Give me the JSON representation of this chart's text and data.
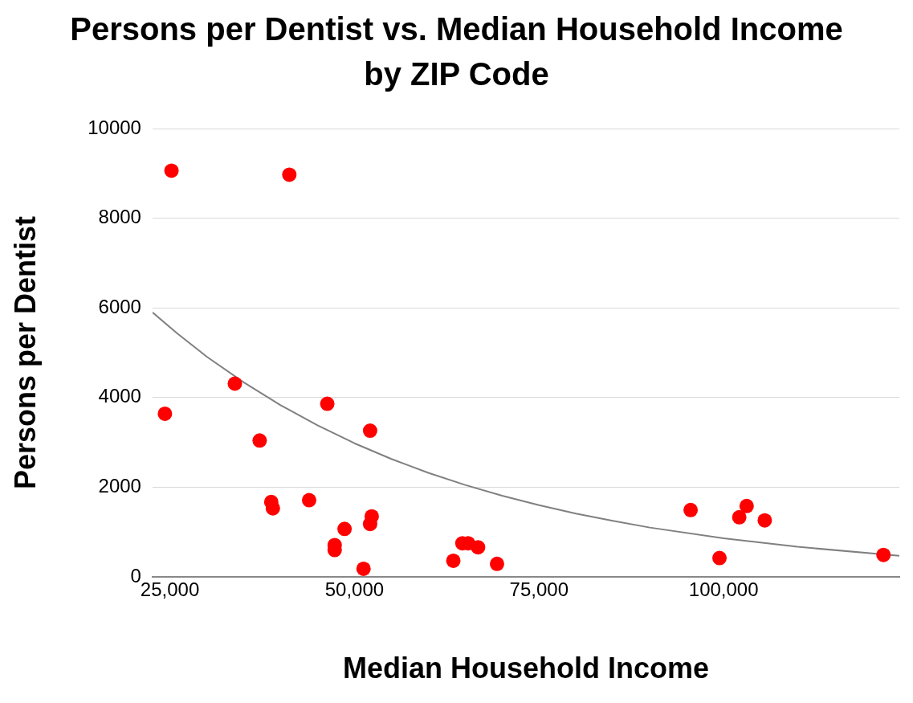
{
  "chart_data": {
    "type": "scatter",
    "title": "Persons per Dentist vs. Median Household Income by ZIP Code",
    "xlabel": "Median Household Income",
    "ylabel": "Persons per Dentist",
    "xlim": [
      22650,
      123800
    ],
    "xticks": [
      {
        "value": 25000,
        "label": "25,000"
      },
      {
        "value": 50000,
        "label": "50,000"
      },
      {
        "value": 75000,
        "label": "75,000"
      },
      {
        "value": 100000,
        "label": "100,000"
      }
    ],
    "ylim": [
      0,
      10000
    ],
    "yticks": [
      0,
      2000,
      4000,
      6000,
      8000,
      10000
    ],
    "grid": "y",
    "legend": false,
    "series": [
      {
        "type": "scatter",
        "color": "#ff0000",
        "marker": "circle",
        "x": [
          25220,
          24330,
          33800,
          37160,
          41180,
          38730,
          38950,
          43860,
          46320,
          47320,
          47320,
          48660,
          51230,
          52120,
          52340,
          52120,
          63390,
          64620,
          65400,
          66740,
          69310,
          95530,
          99440,
          102120,
          103120,
          105570,
          121650
        ],
        "values": [
          9060,
          3640,
          4310,
          3040,
          8970,
          1670,
          1530,
          1710,
          3860,
          710,
          600,
          1070,
          180,
          3260,
          1350,
          1180,
          360,
          750,
          750,
          660,
          290,
          1490,
          420,
          1330,
          1580,
          1260,
          490
        ]
      },
      {
        "type": "line",
        "color": "#808080",
        "marker": "none",
        "x": [
          22650,
          26000,
          30000,
          35000,
          40000,
          45000,
          50000,
          55000,
          60000,
          65000,
          70000,
          75000,
          80000,
          85000,
          90000,
          100000,
          110000,
          123800
        ],
        "values": [
          5900,
          5430,
          4910,
          4340,
          3830,
          3380,
          2980,
          2630,
          2320,
          2050,
          1810,
          1600,
          1410,
          1250,
          1100,
          860,
          670,
          470
        ]
      }
    ]
  }
}
